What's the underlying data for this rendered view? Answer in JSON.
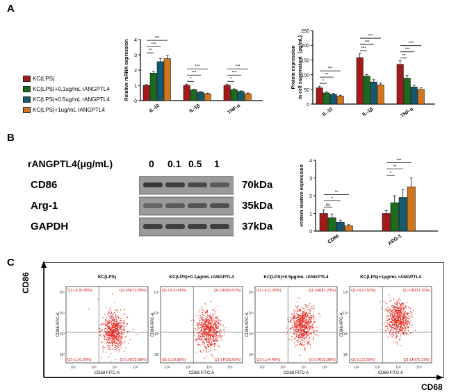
{
  "panels": {
    "a": "A",
    "b": "B",
    "c": "C"
  },
  "colors": {
    "kc_lps": "#a31a1a",
    "kc_lps_01": "#1d6b1d",
    "kc_lps_05": "#135a6e",
    "kc_lps_1": "#d0761c",
    "dots": "#e8261e"
  },
  "legend": [
    {
      "label": "KC(LPS)",
      "color": "#a31a1a"
    },
    {
      "label": "KC(LPS)+0.1ug/mL rANGPTL4",
      "color": "#1d6b1d"
    },
    {
      "label": "KC(LPS)+0.5ug/mL rANGPTL4",
      "color": "#135a6e"
    },
    {
      "label": "KC(LPS)+1ug/mL rANGPTL4",
      "color": "#d0761c"
    }
  ],
  "chart_data": [
    {
      "id": "mrna",
      "type": "bar",
      "ylabel": "Relative mRNA expression",
      "ylim": [
        0,
        4
      ],
      "yticks": [
        "0",
        "1",
        "2",
        "3",
        "4"
      ],
      "categories": [
        "IL-10",
        "IL-1β",
        "TNF-α"
      ],
      "series": [
        {
          "name": "KC(LPS)",
          "values": [
            1.0,
            1.0,
            1.0
          ],
          "errors": [
            0.05,
            0.08,
            0.08
          ]
        },
        {
          "name": "KC(LPS)+0.1ug/mL rANGPTL4",
          "values": [
            1.8,
            0.7,
            0.72
          ],
          "errors": [
            0.12,
            0.05,
            0.05
          ]
        },
        {
          "name": "KC(LPS)+0.5ug/mL rANGPTL4",
          "values": [
            2.55,
            0.55,
            0.6
          ],
          "errors": [
            0.2,
            0.04,
            0.04
          ]
        },
        {
          "name": "KC(LPS)+1ug/mL rANGPTL4",
          "values": [
            2.75,
            0.45,
            0.45
          ],
          "errors": [
            0.2,
            0.04,
            0.05
          ]
        }
      ],
      "significance": [
        {
          "cat": 0,
          "to": 1,
          "label": "**"
        },
        {
          "cat": 0,
          "to": 2,
          "label": "***"
        },
        {
          "cat": 0,
          "to": 3,
          "label": "***"
        },
        {
          "cat": 1,
          "to": 1,
          "label": "*"
        },
        {
          "cat": 1,
          "to": 2,
          "label": "***"
        },
        {
          "cat": 1,
          "to": 3,
          "label": "***"
        },
        {
          "cat": 2,
          "to": 1,
          "label": "*"
        },
        {
          "cat": 2,
          "to": 2,
          "label": "***"
        },
        {
          "cat": 2,
          "to": 3,
          "label": "***"
        }
      ]
    },
    {
      "id": "protein_supernatant",
      "type": "bar",
      "ylabel": "Protein expression",
      "ylabel2": "in cell supernatant（pg/mL)",
      "ylim": [
        0,
        250
      ],
      "yticks": [
        "0",
        "50",
        "100",
        "150",
        "200",
        "250"
      ],
      "categories": [
        "IL-10",
        "IL-1β",
        "TNF-α"
      ],
      "series": [
        {
          "name": "KC(LPS)",
          "values": [
            55,
            158,
            135
          ],
          "errors": [
            6,
            14,
            12
          ]
        },
        {
          "name": "KC(LPS)+0.1ug/mL rANGPTL4",
          "values": [
            38,
            95,
            88
          ],
          "errors": [
            4,
            6,
            10
          ]
        },
        {
          "name": "KC(LPS)+0.5ug/mL rANGPTL4",
          "values": [
            33,
            75,
            58
          ],
          "errors": [
            3,
            8,
            6
          ]
        },
        {
          "name": "KC(LPS)+1ug/mL rANGPTL4",
          "values": [
            27,
            65,
            50
          ],
          "errors": [
            3,
            6,
            5
          ]
        }
      ],
      "significance": [
        {
          "cat": 0,
          "to": 1,
          "label": "*"
        },
        {
          "cat": 0,
          "to": 2,
          "label": "**"
        },
        {
          "cat": 0,
          "to": 3,
          "label": "***"
        },
        {
          "cat": 1,
          "to": 1,
          "label": "***"
        },
        {
          "cat": 1,
          "to": 2,
          "label": "***"
        },
        {
          "cat": 1,
          "to": 3,
          "label": "***"
        },
        {
          "cat": 2,
          "to": 1,
          "label": "**"
        },
        {
          "cat": 2,
          "to": 2,
          "label": "***"
        },
        {
          "cat": 2,
          "to": 3,
          "label": "***"
        }
      ]
    },
    {
      "id": "protein_relative",
      "type": "bar",
      "ylabel": "Protein relative expression",
      "ylim": [
        0,
        4
      ],
      "yticks": [
        "0",
        "1",
        "2",
        "3",
        "4"
      ],
      "categories": [
        "CD86",
        "ARG-1"
      ],
      "series": [
        {
          "name": "KC(LPS)",
          "values": [
            1.0,
            1.0
          ],
          "errors": [
            0.2,
            0.15
          ]
        },
        {
          "name": "KC(LPS)+0.1ug/mL rANGPTL4",
          "values": [
            0.75,
            1.6
          ],
          "errors": [
            0.2,
            0.4
          ]
        },
        {
          "name": "KC(LPS)+0.5ug/mL rANGPTL4",
          "values": [
            0.5,
            1.9
          ],
          "errors": [
            0.12,
            0.45
          ]
        },
        {
          "name": "KC(LPS)+1ug/mL rANGPTL4",
          "values": [
            0.3,
            2.5
          ],
          "errors": [
            0.06,
            0.5
          ]
        }
      ],
      "significance": [
        {
          "cat": 0,
          "to": 1,
          "label": "ns"
        },
        {
          "cat": 0,
          "to": 2,
          "label": "*"
        },
        {
          "cat": 0,
          "to": 3,
          "label": "**"
        },
        {
          "cat": 1,
          "to": 1,
          "label": "*"
        },
        {
          "cat": 1,
          "to": 2,
          "label": "**"
        },
        {
          "cat": 1,
          "to": 3,
          "label": "***"
        }
      ]
    }
  ],
  "western_blot": {
    "header": "rANGPTL4(μg/mL)",
    "doses": [
      "0",
      "0.1",
      "0.5",
      "1"
    ],
    "rows": [
      {
        "protein": "CD86",
        "kda": "70kDa",
        "intensity": [
          0.85,
          0.8,
          0.7,
          0.55
        ]
      },
      {
        "protein": "Arg-1",
        "kda": "35kDa",
        "intensity": [
          0.45,
          0.55,
          0.6,
          0.65
        ]
      },
      {
        "protein": "GAPDH",
        "kda": "37kDa",
        "intensity": [
          0.8,
          0.8,
          0.8,
          0.8
        ]
      }
    ]
  },
  "flow": {
    "y_axis": "CD86",
    "x_axis": "CD68",
    "plot_ylabel": "CD86 APC-A",
    "plot_xlabel": "CD68 FITC-A",
    "x_ticks": [
      "10²",
      "10³",
      "10⁴",
      "10⁵"
    ],
    "y_ticks": [
      "10²",
      "10³",
      "10⁴",
      "10⁵"
    ],
    "plots": [
      {
        "title": "KC(LPS)",
        "ul": "Q1-UL(0.28%)",
        "ur": "Q1-UR(72.83%)",
        "ll": "Q1-LL(0.90%)",
        "lr": "Q1-LR(25.98%)",
        "cy": 0.58
      },
      {
        "title": "KC(LPS)+0.1μg/mL rANGPTL4",
        "ul": "Q1-UL(0.45%)",
        "ur": "Q1-UR(69.57%)",
        "ll": "Q1-LL(0.89%)",
        "lr": "Q1-LR(29.09%)",
        "cy": 0.57
      },
      {
        "title": "KC(LPS)+0.5μg/mL rANGPTL4",
        "ul": "Q1-UL(1.28%)",
        "ur": "Q1-UR(41.29%)",
        "ll": "Q1-LL(4.48%)",
        "lr": "Q1-LR(52.98%)",
        "cy": 0.5
      },
      {
        "title": "KC(LPS)+1μg/mL rANGPTL4",
        "ul": "Q1-UL(0.52%)",
        "ur": "Q1-UR(21.70%)",
        "ll": "Q1-LL(2.59%)",
        "lr": "Q1-LR(75.19%)",
        "cy": 0.42
      }
    ]
  }
}
